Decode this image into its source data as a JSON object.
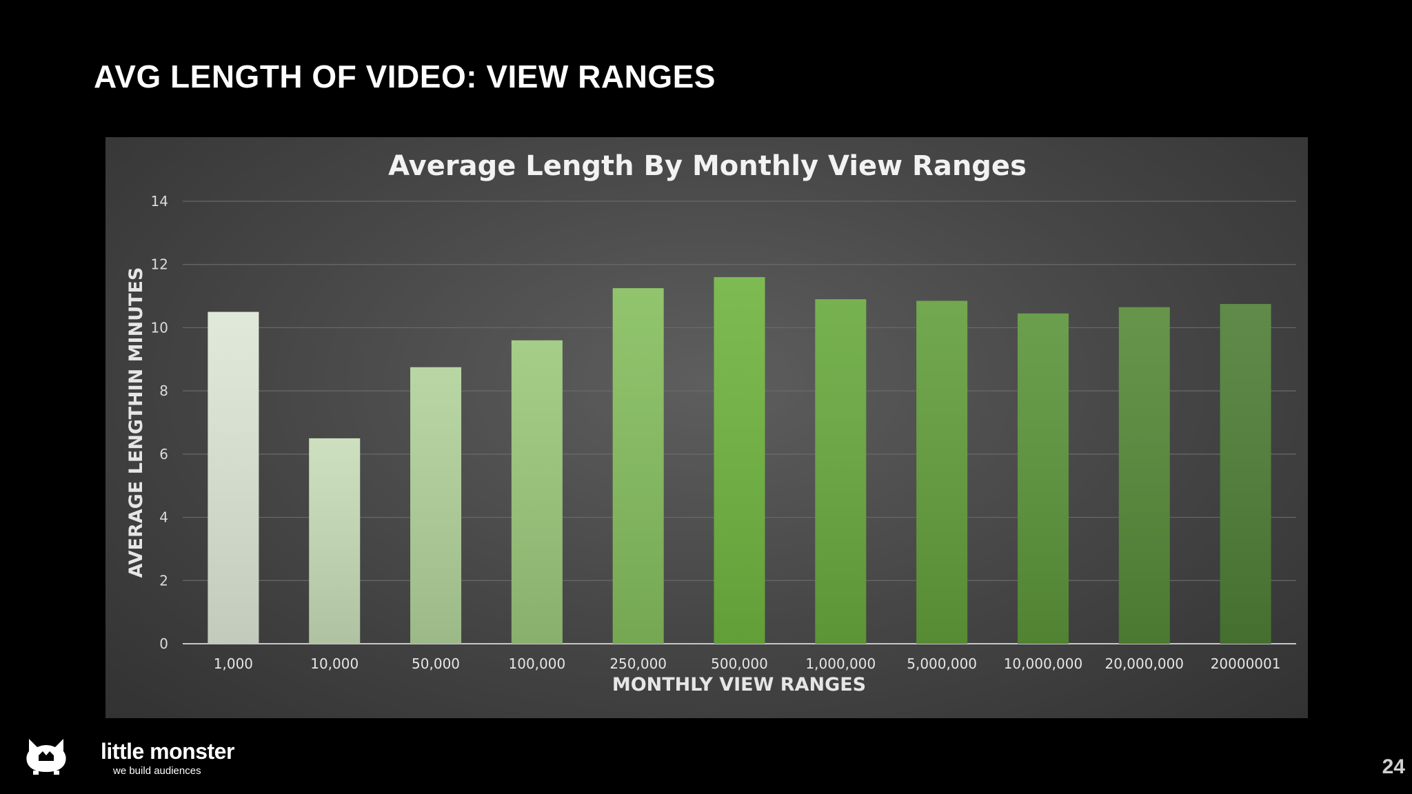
{
  "slide": {
    "title": "AVG LENGTH OF VIDEO: VIEW RANGES",
    "page_number": "24"
  },
  "logo": {
    "name": "little monster",
    "tagline": "we build audiences",
    "icon": "monster-icon"
  },
  "colors": {
    "background": "#000000",
    "bar_start": "#dde6d6",
    "bar_mid": "#6fb43f",
    "bar_end": "#4e7e35"
  },
  "chart_data": {
    "type": "bar",
    "title": "Average Length By Monthly View Ranges",
    "xlabel": "MONTHLY VIEW RANGES",
    "ylabel": "AVERAGE LENGTHIN MINUTES",
    "categories": [
      "1,000",
      "10,000",
      "50,000",
      "100,000",
      "250,000",
      "500,000",
      "1,000,000",
      "5,000,000",
      "10,000,000",
      "20,000,000",
      "20000001"
    ],
    "values": [
      10.5,
      6.5,
      8.75,
      9.6,
      11.25,
      11.6,
      10.9,
      10.85,
      10.45,
      10.65,
      10.75
    ],
    "ylim": [
      0,
      14
    ],
    "yticks": [
      0,
      2,
      4,
      6,
      8,
      10,
      12,
      14
    ],
    "grid": true,
    "legend": "none"
  }
}
